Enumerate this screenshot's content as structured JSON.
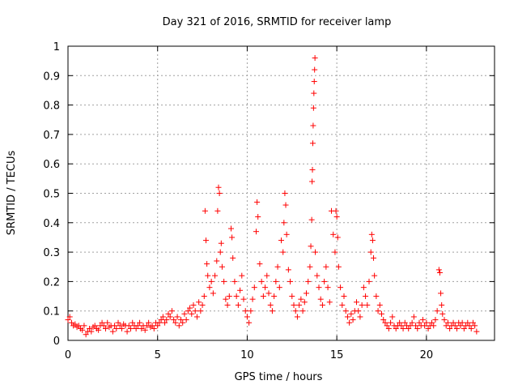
{
  "chart_data": {
    "type": "scatter",
    "title": "Day 321 of 2016, SRMTID for receiver lamp",
    "xlabel": "GPS time / hours",
    "ylabel": "SRMTID / TECUs",
    "xlim": [
      0,
      23.8
    ],
    "ylim": [
      0,
      1
    ],
    "x_ticks": [
      "0",
      "5",
      "10",
      "15",
      "20"
    ],
    "y_ticks": [
      "0",
      "0.1",
      "0.2",
      "0.3",
      "0.4",
      "0.5",
      "0.6",
      "0.7",
      "0.8",
      "0.9",
      "1"
    ],
    "grid": true,
    "marker": "+",
    "color": "#ff0000",
    "series": [
      {
        "name": "SRMTID",
        "points": [
          [
            0.0,
            0.07
          ],
          [
            0.1,
            0.08
          ],
          [
            0.2,
            0.06
          ],
          [
            0.3,
            0.05
          ],
          [
            0.4,
            0.055
          ],
          [
            0.5,
            0.045
          ],
          [
            0.6,
            0.05
          ],
          [
            0.7,
            0.04
          ],
          [
            0.8,
            0.035
          ],
          [
            0.9,
            0.05
          ],
          [
            1.0,
            0.02
          ],
          [
            1.1,
            0.03
          ],
          [
            1.2,
            0.04
          ],
          [
            1.3,
            0.03
          ],
          [
            1.4,
            0.045
          ],
          [
            1.5,
            0.05
          ],
          [
            1.6,
            0.04
          ],
          [
            1.7,
            0.035
          ],
          [
            1.8,
            0.05
          ],
          [
            1.9,
            0.06
          ],
          [
            2.0,
            0.05
          ],
          [
            2.1,
            0.04
          ],
          [
            2.2,
            0.06
          ],
          [
            2.3,
            0.045
          ],
          [
            2.4,
            0.05
          ],
          [
            2.5,
            0.03
          ],
          [
            2.6,
            0.05
          ],
          [
            2.7,
            0.04
          ],
          [
            2.8,
            0.06
          ],
          [
            2.9,
            0.05
          ],
          [
            3.0,
            0.04
          ],
          [
            3.1,
            0.055
          ],
          [
            3.2,
            0.05
          ],
          [
            3.3,
            0.03
          ],
          [
            3.4,
            0.05
          ],
          [
            3.5,
            0.04
          ],
          [
            3.6,
            0.06
          ],
          [
            3.7,
            0.05
          ],
          [
            3.8,
            0.04
          ],
          [
            3.9,
            0.05
          ],
          [
            4.0,
            0.06
          ],
          [
            4.1,
            0.04
          ],
          [
            4.2,
            0.05
          ],
          [
            4.3,
            0.035
          ],
          [
            4.4,
            0.05
          ],
          [
            4.5,
            0.06
          ],
          [
            4.6,
            0.045
          ],
          [
            4.7,
            0.05
          ],
          [
            4.8,
            0.04
          ],
          [
            4.9,
            0.06
          ],
          [
            5.0,
            0.05
          ],
          [
            5.1,
            0.06
          ],
          [
            5.2,
            0.07
          ],
          [
            5.3,
            0.08
          ],
          [
            5.4,
            0.06
          ],
          [
            5.5,
            0.07
          ],
          [
            5.6,
            0.09
          ],
          [
            5.7,
            0.08
          ],
          [
            5.8,
            0.1
          ],
          [
            5.9,
            0.07
          ],
          [
            6.0,
            0.06
          ],
          [
            6.1,
            0.08
          ],
          [
            6.2,
            0.05
          ],
          [
            6.3,
            0.07
          ],
          [
            6.4,
            0.06
          ],
          [
            6.5,
            0.09
          ],
          [
            6.6,
            0.07
          ],
          [
            6.7,
            0.1
          ],
          [
            6.8,
            0.11
          ],
          [
            6.9,
            0.09
          ],
          [
            7.0,
            0.12
          ],
          [
            7.1,
            0.1
          ],
          [
            7.2,
            0.08
          ],
          [
            7.3,
            0.13
          ],
          [
            7.4,
            0.1
          ],
          [
            7.5,
            0.12
          ],
          [
            7.6,
            0.15
          ],
          [
            7.65,
            0.44
          ],
          [
            7.7,
            0.34
          ],
          [
            7.75,
            0.26
          ],
          [
            7.8,
            0.22
          ],
          [
            7.9,
            0.18
          ],
          [
            8.0,
            0.2
          ],
          [
            8.1,
            0.16
          ],
          [
            8.2,
            0.22
          ],
          [
            8.3,
            0.27
          ],
          [
            8.35,
            0.44
          ],
          [
            8.4,
            0.52
          ],
          [
            8.45,
            0.5
          ],
          [
            8.5,
            0.3
          ],
          [
            8.55,
            0.33
          ],
          [
            8.6,
            0.25
          ],
          [
            8.7,
            0.2
          ],
          [
            8.8,
            0.14
          ],
          [
            8.9,
            0.12
          ],
          [
            9.0,
            0.15
          ],
          [
            9.1,
            0.38
          ],
          [
            9.15,
            0.35
          ],
          [
            9.2,
            0.28
          ],
          [
            9.3,
            0.2
          ],
          [
            9.4,
            0.15
          ],
          [
            9.5,
            0.12
          ],
          [
            9.6,
            0.17
          ],
          [
            9.7,
            0.22
          ],
          [
            9.8,
            0.14
          ],
          [
            9.9,
            0.1
          ],
          [
            10.0,
            0.08
          ],
          [
            10.1,
            0.06
          ],
          [
            10.2,
            0.1
          ],
          [
            10.3,
            0.14
          ],
          [
            10.4,
            0.18
          ],
          [
            10.5,
            0.37
          ],
          [
            10.55,
            0.47
          ],
          [
            10.6,
            0.42
          ],
          [
            10.7,
            0.26
          ],
          [
            10.8,
            0.2
          ],
          [
            10.9,
            0.15
          ],
          [
            11.0,
            0.18
          ],
          [
            11.1,
            0.22
          ],
          [
            11.2,
            0.16
          ],
          [
            11.3,
            0.12
          ],
          [
            11.4,
            0.1
          ],
          [
            11.5,
            0.15
          ],
          [
            11.6,
            0.2
          ],
          [
            11.7,
            0.25
          ],
          [
            11.8,
            0.18
          ],
          [
            11.9,
            0.34
          ],
          [
            12.0,
            0.3
          ],
          [
            12.05,
            0.4
          ],
          [
            12.1,
            0.5
          ],
          [
            12.15,
            0.46
          ],
          [
            12.2,
            0.36
          ],
          [
            12.3,
            0.24
          ],
          [
            12.4,
            0.2
          ],
          [
            12.5,
            0.15
          ],
          [
            12.6,
            0.12
          ],
          [
            12.7,
            0.1
          ],
          [
            12.8,
            0.08
          ],
          [
            12.9,
            0.12
          ],
          [
            13.0,
            0.14
          ],
          [
            13.1,
            0.1
          ],
          [
            13.2,
            0.13
          ],
          [
            13.3,
            0.16
          ],
          [
            13.4,
            0.2
          ],
          [
            13.5,
            0.25
          ],
          [
            13.55,
            0.32
          ],
          [
            13.6,
            0.41
          ],
          [
            13.62,
            0.54
          ],
          [
            13.64,
            0.58
          ],
          [
            13.66,
            0.67
          ],
          [
            13.68,
            0.73
          ],
          [
            13.7,
            0.79
          ],
          [
            13.72,
            0.84
          ],
          [
            13.74,
            0.88
          ],
          [
            13.76,
            0.92
          ],
          [
            13.78,
            0.96
          ],
          [
            13.8,
            0.3
          ],
          [
            13.9,
            0.22
          ],
          [
            14.0,
            0.18
          ],
          [
            14.1,
            0.14
          ],
          [
            14.2,
            0.12
          ],
          [
            14.3,
            0.2
          ],
          [
            14.4,
            0.25
          ],
          [
            14.5,
            0.18
          ],
          [
            14.6,
            0.13
          ],
          [
            14.7,
            0.44
          ],
          [
            14.8,
            0.36
          ],
          [
            14.9,
            0.3
          ],
          [
            14.95,
            0.44
          ],
          [
            15.0,
            0.42
          ],
          [
            15.05,
            0.35
          ],
          [
            15.1,
            0.25
          ],
          [
            15.2,
            0.18
          ],
          [
            15.3,
            0.12
          ],
          [
            15.4,
            0.15
          ],
          [
            15.5,
            0.1
          ],
          [
            15.6,
            0.08
          ],
          [
            15.7,
            0.06
          ],
          [
            15.8,
            0.09
          ],
          [
            15.9,
            0.07
          ],
          [
            16.0,
            0.1
          ],
          [
            16.1,
            0.13
          ],
          [
            16.2,
            0.1
          ],
          [
            16.3,
            0.08
          ],
          [
            16.4,
            0.12
          ],
          [
            16.5,
            0.18
          ],
          [
            16.6,
            0.15
          ],
          [
            16.7,
            0.12
          ],
          [
            16.8,
            0.2
          ],
          [
            16.9,
            0.3
          ],
          [
            16.95,
            0.36
          ],
          [
            17.0,
            0.34
          ],
          [
            17.05,
            0.28
          ],
          [
            17.1,
            0.22
          ],
          [
            17.2,
            0.15
          ],
          [
            17.3,
            0.1
          ],
          [
            17.4,
            0.12
          ],
          [
            17.5,
            0.09
          ],
          [
            17.6,
            0.07
          ],
          [
            17.7,
            0.06
          ],
          [
            17.8,
            0.05
          ],
          [
            17.9,
            0.04
          ],
          [
            18.0,
            0.06
          ],
          [
            18.1,
            0.08
          ],
          [
            18.2,
            0.05
          ],
          [
            18.3,
            0.04
          ],
          [
            18.4,
            0.05
          ],
          [
            18.5,
            0.06
          ],
          [
            18.6,
            0.05
          ],
          [
            18.7,
            0.04
          ],
          [
            18.8,
            0.06
          ],
          [
            18.9,
            0.05
          ],
          [
            19.0,
            0.04
          ],
          [
            19.1,
            0.05
          ],
          [
            19.2,
            0.06
          ],
          [
            19.3,
            0.08
          ],
          [
            19.4,
            0.05
          ],
          [
            19.5,
            0.04
          ],
          [
            19.6,
            0.06
          ],
          [
            19.7,
            0.05
          ],
          [
            19.8,
            0.07
          ],
          [
            19.9,
            0.05
          ],
          [
            20.0,
            0.06
          ],
          [
            20.1,
            0.04
          ],
          [
            20.2,
            0.05
          ],
          [
            20.3,
            0.06
          ],
          [
            20.4,
            0.05
          ],
          [
            20.5,
            0.07
          ],
          [
            20.6,
            0.1
          ],
          [
            20.7,
            0.24
          ],
          [
            20.75,
            0.23
          ],
          [
            20.8,
            0.16
          ],
          [
            20.85,
            0.12
          ],
          [
            20.9,
            0.09
          ],
          [
            21.0,
            0.07
          ],
          [
            21.1,
            0.05
          ],
          [
            21.2,
            0.06
          ],
          [
            21.3,
            0.04
          ],
          [
            21.4,
            0.05
          ],
          [
            21.5,
            0.06
          ],
          [
            21.6,
            0.05
          ],
          [
            21.7,
            0.04
          ],
          [
            21.8,
            0.06
          ],
          [
            21.9,
            0.05
          ],
          [
            22.0,
            0.06
          ],
          [
            22.1,
            0.04
          ],
          [
            22.2,
            0.05
          ],
          [
            22.3,
            0.06
          ],
          [
            22.4,
            0.05
          ],
          [
            22.5,
            0.04
          ],
          [
            22.6,
            0.06
          ],
          [
            22.7,
            0.05
          ],
          [
            22.8,
            0.03
          ]
        ]
      }
    ]
  }
}
